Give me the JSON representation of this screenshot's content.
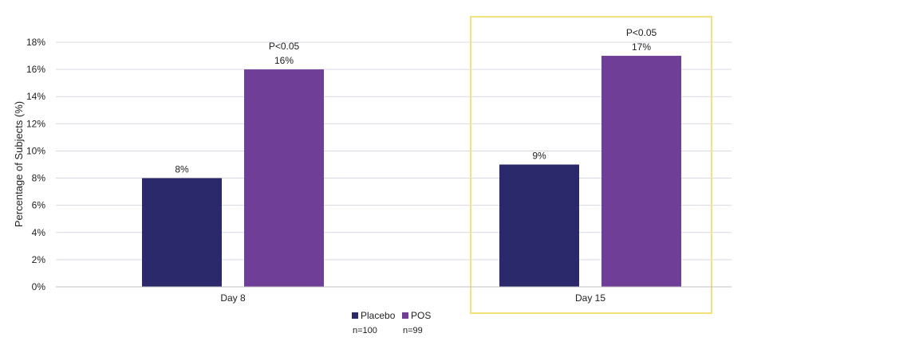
{
  "chart_data": {
    "type": "bar",
    "categories": [
      "Day 8",
      "Day 15"
    ],
    "series": [
      {
        "name": "Placebo",
        "n_label": "n=100",
        "color": "#2b286b",
        "values": [
          8,
          9
        ],
        "labels": [
          "8%",
          "9%"
        ]
      },
      {
        "name": "POS",
        "n_label": "n=99",
        "color": "#6f3f98",
        "values": [
          16,
          17
        ],
        "labels": [
          "16%",
          "17%"
        ]
      }
    ],
    "annotations": [
      "P<0.05",
      "P<0.05"
    ],
    "ylabel": "Percentage of Subjects (%)",
    "ylim": [
      0,
      18
    ],
    "yticks": [
      "0%",
      "2%",
      "4%",
      "6%",
      "8%",
      "10%",
      "12%",
      "14%",
      "16%",
      "18%"
    ],
    "grid": true,
    "legend_position": "bottom-center",
    "highlight_category": "Day 15",
    "highlight_color": "#f2e27a",
    "grid_color": "#d9d9e3"
  }
}
